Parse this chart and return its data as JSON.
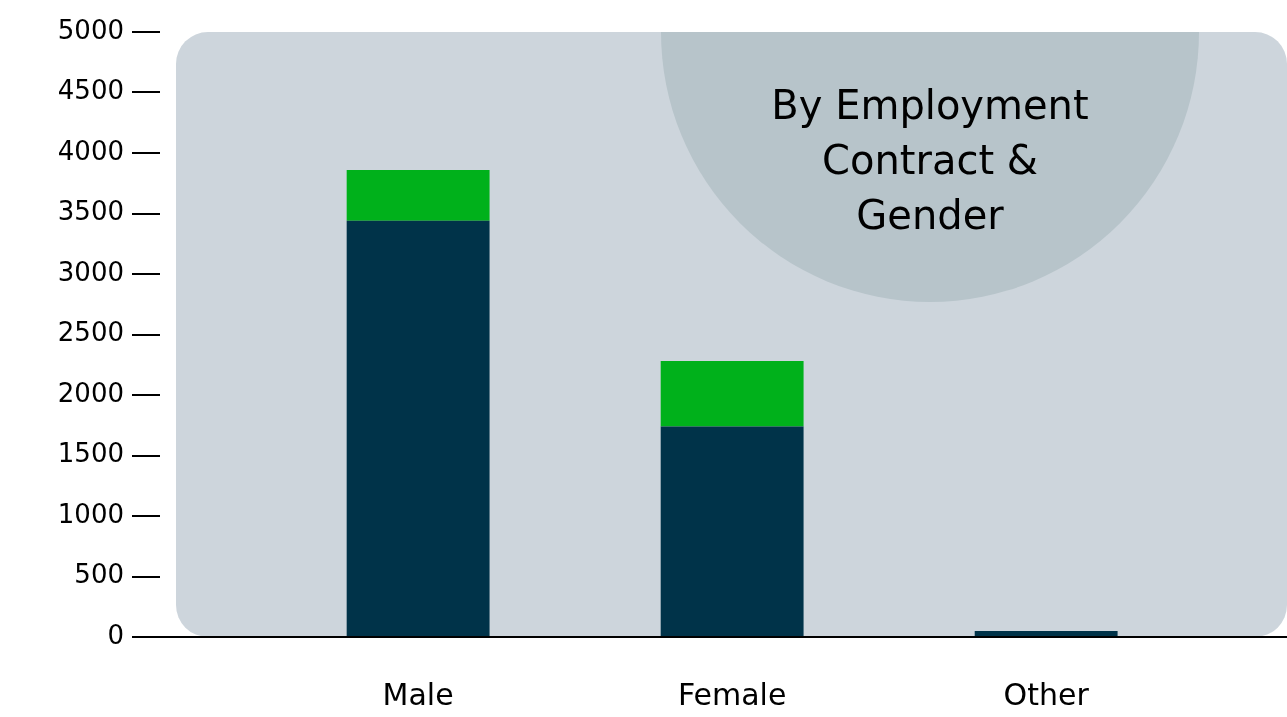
{
  "chart_data": {
    "type": "bar",
    "title": "By Employment Contract & Gender",
    "categories": [
      "Male",
      "Female",
      "Other"
    ],
    "stacked": true,
    "series": [
      {
        "color": "#003349",
        "values": [
          3440,
          1740,
          50
        ]
      },
      {
        "color": "#00b11b",
        "values": [
          420,
          540,
          0
        ]
      }
    ],
    "ylim": [
      0,
      5000
    ],
    "yticks": [
      0,
      500,
      1000,
      1500,
      2000,
      2500,
      3000,
      3500,
      4000,
      4500,
      5000
    ],
    "grid": false,
    "legend": false
  }
}
